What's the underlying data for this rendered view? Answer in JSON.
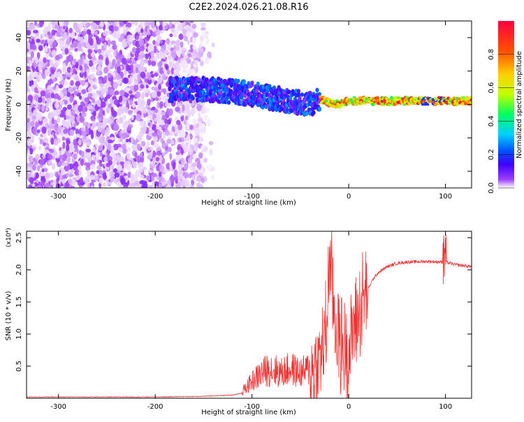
{
  "title": "C2E2.2024.026.21.08.R16",
  "chart_data": [
    {
      "type": "heatmap",
      "xlabel": "Height of straight line (km)",
      "ylabel": "Frequency (Hz)",
      "xlim": [
        -333,
        127
      ],
      "ylim": [
        -50,
        50
      ],
      "x_ticks": [
        -300,
        -200,
        -100,
        0,
        100
      ],
      "y_ticks": [
        -40,
        -20,
        0,
        20,
        40
      ],
      "colorbar": {
        "label": "Normalized spectral amplitude",
        "range": [
          0.0,
          1.0
        ],
        "ticks": [
          0.0,
          0.2,
          0.4,
          0.6,
          0.8
        ],
        "colors": [
          "#ffffff",
          "#a040ff",
          "#4000ff",
          "#0050ff",
          "#00d0ff",
          "#00ff60",
          "#c0ff00",
          "#ffd000",
          "#ff5000",
          "#ff0040"
        ]
      },
      "signal_track": {
        "x": [
          -180,
          -150,
          -120,
          -100,
          -80,
          -60,
          -40,
          -30,
          -20,
          -10,
          0,
          20,
          40,
          60,
          80,
          100,
          127
        ],
        "y": [
          9,
          9,
          8,
          6,
          4,
          2,
          0,
          3,
          1,
          0,
          2,
          2,
          2,
          2,
          2,
          2,
          2
        ]
      }
    },
    {
      "type": "line",
      "xlabel": "Height of straight line (km)",
      "ylabel": "SNR (10 * v/v)",
      "y_multiplier": "(x10⁴)",
      "xlim": [
        -333,
        127
      ],
      "ylim": [
        0,
        2.6
      ],
      "x_ticks": [
        -300,
        -200,
        -100,
        0,
        100
      ],
      "y_ticks": [
        0.5,
        1.0,
        1.5,
        2.0,
        2.5
      ],
      "line_color": "#ee3333",
      "series": [
        {
          "x": [
            -333,
            -300,
            -250,
            -200,
            -150,
            -120,
            -110,
            -100,
            -90,
            -80,
            -70,
            -60,
            -50,
            -40,
            -35,
            -30,
            -25,
            -22,
            -20,
            -15,
            -10,
            -5,
            0,
            5,
            10,
            15,
            20,
            25,
            30,
            40,
            50,
            60,
            80,
            100,
            110,
            127
          ],
          "y": [
            0.02,
            0.02,
            0.02,
            0.02,
            0.03,
            0.05,
            0.08,
            0.2,
            0.3,
            0.35,
            0.3,
            0.35,
            0.3,
            0.35,
            0.5,
            0.6,
            0.9,
            1.3,
            2.3,
            1.3,
            0.9,
            0.8,
            0.7,
            1.1,
            1.3,
            1.5,
            1.7,
            1.85,
            1.95,
            2.05,
            2.1,
            2.12,
            2.13,
            2.12,
            2.08,
            2.05
          ]
        }
      ]
    }
  ]
}
